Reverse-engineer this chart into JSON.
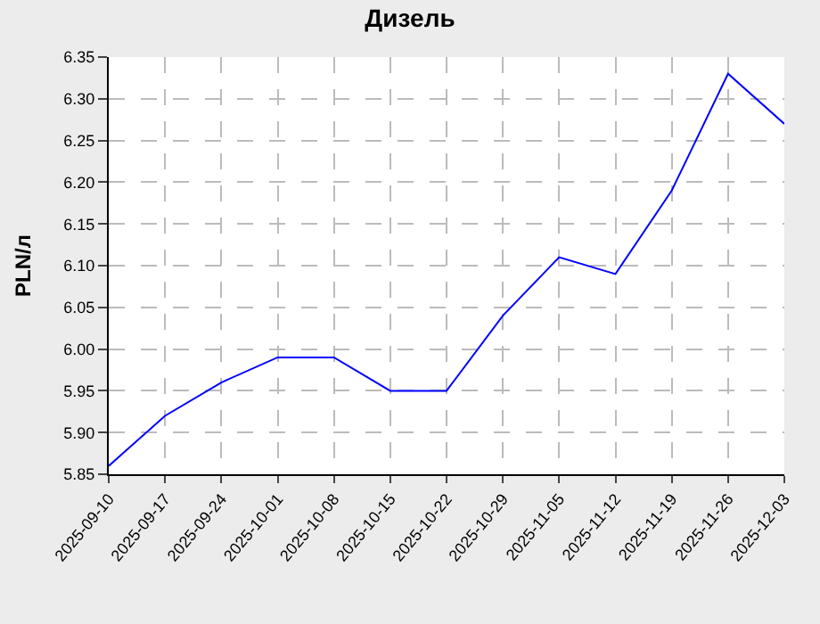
{
  "chart_data": {
    "type": "line",
    "title": "Дизель",
    "ylabel": "PLN/л",
    "categories": [
      "2025-09-10",
      "2025-09-17",
      "2025-09-24",
      "2025-10-01",
      "2025-10-08",
      "2025-10-15",
      "2025-10-22",
      "2025-10-29",
      "2025-11-05",
      "2025-11-12",
      "2025-11-19",
      "2025-11-26",
      "2025-12-03"
    ],
    "series": [
      {
        "color": "#0000ff",
        "values": [
          5.86,
          5.92,
          5.96,
          5.99,
          5.99,
          5.95,
          5.95,
          6.04,
          6.11,
          6.09,
          6.19,
          6.33,
          6.27
        ]
      }
    ],
    "ylim": [
      5.85,
      6.35
    ],
    "yticks": [
      {
        "value": 5.85,
        "label": "5.85"
      },
      {
        "value": 5.9,
        "label": "5.90"
      },
      {
        "value": 5.95,
        "label": "5.95"
      },
      {
        "value": 6.0,
        "label": "6.00"
      },
      {
        "value": 6.05,
        "label": "6.05"
      },
      {
        "value": 6.1,
        "label": "6.10"
      },
      {
        "value": 6.15,
        "label": "6.15"
      },
      {
        "value": 6.2,
        "label": "6.20"
      },
      {
        "value": 6.25,
        "label": "6.25"
      },
      {
        "value": 6.3,
        "label": "6.30"
      },
      {
        "value": 6.35,
        "label": "6.35"
      }
    ],
    "grid": true,
    "legend": false,
    "marker": "none",
    "line_style": "solid"
  }
}
